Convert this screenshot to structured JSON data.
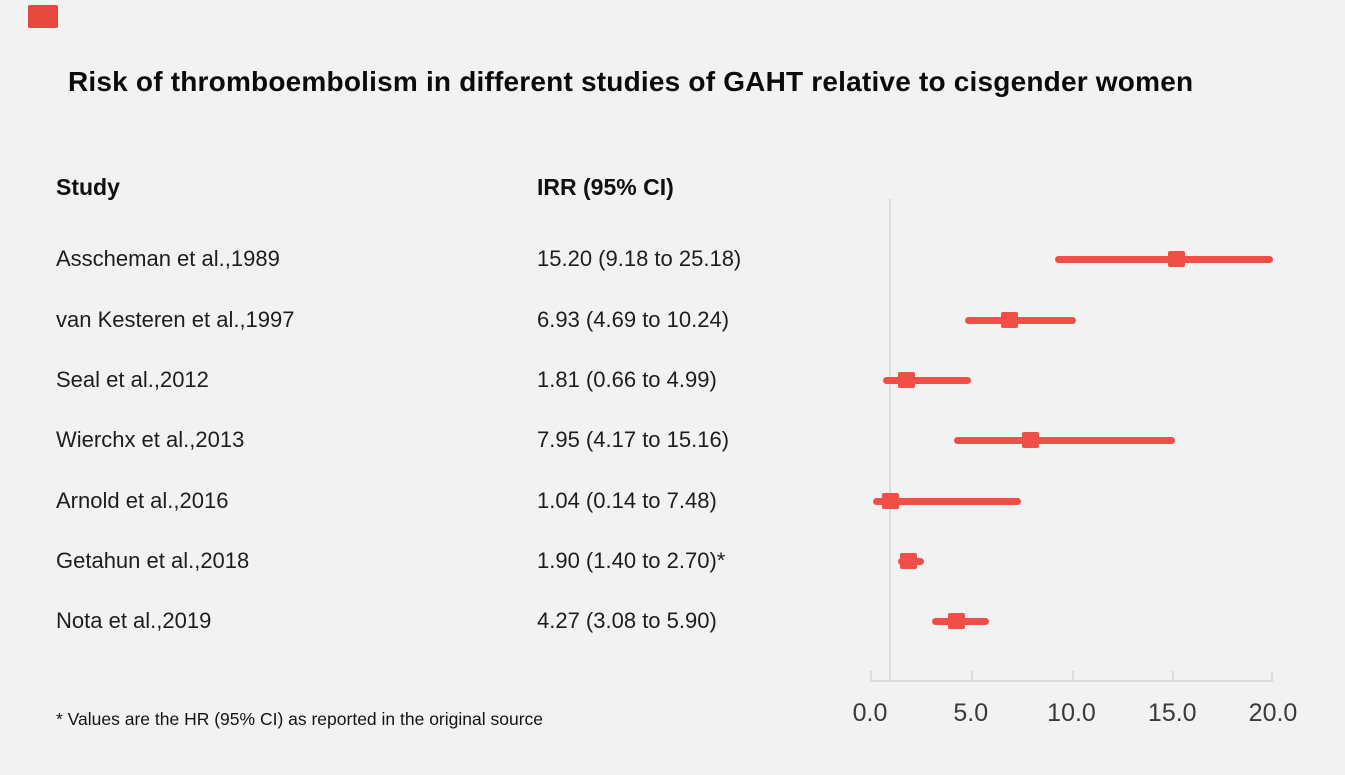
{
  "title": "Risk of thromboembolism in different studies of GAHT relative to cisgender women",
  "brand_color": "#e64840",
  "columns": {
    "study": "Study",
    "irr": "IRR (95% CI)"
  },
  "footnote": "* Values are the HR (95% CI) as reported in the original source",
  "chart_data": {
    "type": "scatter",
    "variant": "forest-plot",
    "title": "Risk of thromboembolism in different studies of GAHT relative to cisgender women",
    "xlabel": "",
    "ylabel": "",
    "xlim": [
      0,
      20
    ],
    "reference_line": 1.0,
    "grid": false,
    "legend": "none",
    "marker_color": "#f04f48",
    "axis_color": "#d9dde1",
    "tick_label_color": "#3a3a3a",
    "x_ticks": [
      {
        "value": 0,
        "label": "0.0"
      },
      {
        "value": 5,
        "label": "5.0"
      },
      {
        "value": 10,
        "label": "10.0"
      },
      {
        "value": 15,
        "label": "15.0"
      },
      {
        "value": 20,
        "label": "20.0"
      }
    ],
    "studies": [
      {
        "study": "Asscheman et al.,1989",
        "irr_text": "15.20 (9.18 to 25.18)",
        "est": 15.2,
        "lo": 9.18,
        "hi": 25.18
      },
      {
        "study": "van Kesteren et al.,1997",
        "irr_text": "6.93 (4.69 to 10.24)",
        "est": 6.93,
        "lo": 4.69,
        "hi": 10.24
      },
      {
        "study": "Seal et al.,2012",
        "irr_text": "1.81 (0.66 to 4.99)",
        "est": 1.81,
        "lo": 0.66,
        "hi": 4.99
      },
      {
        "study": "Wierchx et al.,2013",
        "irr_text": "7.95 (4.17 to 15.16)",
        "est": 7.95,
        "lo": 4.17,
        "hi": 15.16
      },
      {
        "study": "Arnold et al.,2016",
        "irr_text": "1.04 (0.14 to 7.48)",
        "est": 1.04,
        "lo": 0.14,
        "hi": 7.48
      },
      {
        "study": "Getahun et al.,2018",
        "irr_text": "1.90 (1.40 to 2.70)*",
        "est": 1.9,
        "lo": 1.4,
        "hi": 2.7
      },
      {
        "study": "Nota et al.,2019",
        "irr_text": "4.27 (3.08 to 5.90)",
        "est": 4.27,
        "lo": 3.08,
        "hi": 5.9
      }
    ]
  }
}
